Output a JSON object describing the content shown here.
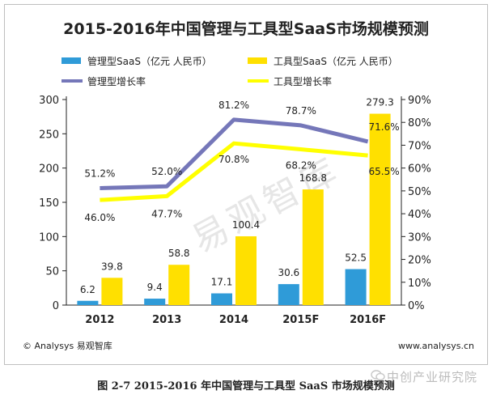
{
  "chart_data": {
    "type": "bar-line-combo",
    "title": "2015-2016年中国管理与工具型SaaS市场规模预测",
    "categories": [
      "2012",
      "2013",
      "2014",
      "2015F",
      "2016F"
    ],
    "y_left": {
      "min": 0,
      "max": 300,
      "ticks": [
        "0",
        "50",
        "100",
        "150",
        "200",
        "250",
        "300"
      ]
    },
    "y_right": {
      "min": 0,
      "max": 90,
      "ticks": [
        "0%",
        "10%",
        "20%",
        "30%",
        "40%",
        "50%",
        "60%",
        "70%",
        "80%",
        "90%"
      ]
    },
    "bar_series": [
      {
        "name": "管理型SaaS（亿元 人民币）",
        "color": "#2f9bd8",
        "values": [
          6.2,
          9.4,
          17.1,
          30.6,
          52.5
        ],
        "labels": [
          "6.2",
          "9.4",
          "17.1",
          "30.6",
          "52.5"
        ]
      },
      {
        "name": "工具型SaaS（亿元 人民币）",
        "color": "#ffe000",
        "values": [
          39.8,
          58.8,
          100.4,
          168.8,
          279.3
        ],
        "labels": [
          "39.8",
          "58.8",
          "100.4",
          "168.8",
          "279.3"
        ]
      }
    ],
    "line_series": [
      {
        "name": "管理型增长率",
        "color": "#7577b9",
        "values": [
          51.2,
          52.0,
          81.2,
          78.7,
          71.6
        ],
        "labels": [
          "51.2%",
          "52.0%",
          "81.2%",
          "78.7%",
          "71.6%"
        ]
      },
      {
        "name": "工具型增长率",
        "color": "#ffff00",
        "values": [
          46.0,
          47.7,
          70.8,
          68.2,
          65.5
        ],
        "labels": [
          "46.0%",
          "47.7%",
          "70.8%",
          "68.2%",
          "65.5%"
        ]
      }
    ],
    "source_left": "© Analysys 易观智库",
    "source_right": "www.analysys.cn",
    "watermark": "易观智库"
  },
  "caption": "图 2-7 2015-2016 年中国管理与工具型 SaaS 市场规模预测",
  "brand_watermark": "中创产业研究院"
}
